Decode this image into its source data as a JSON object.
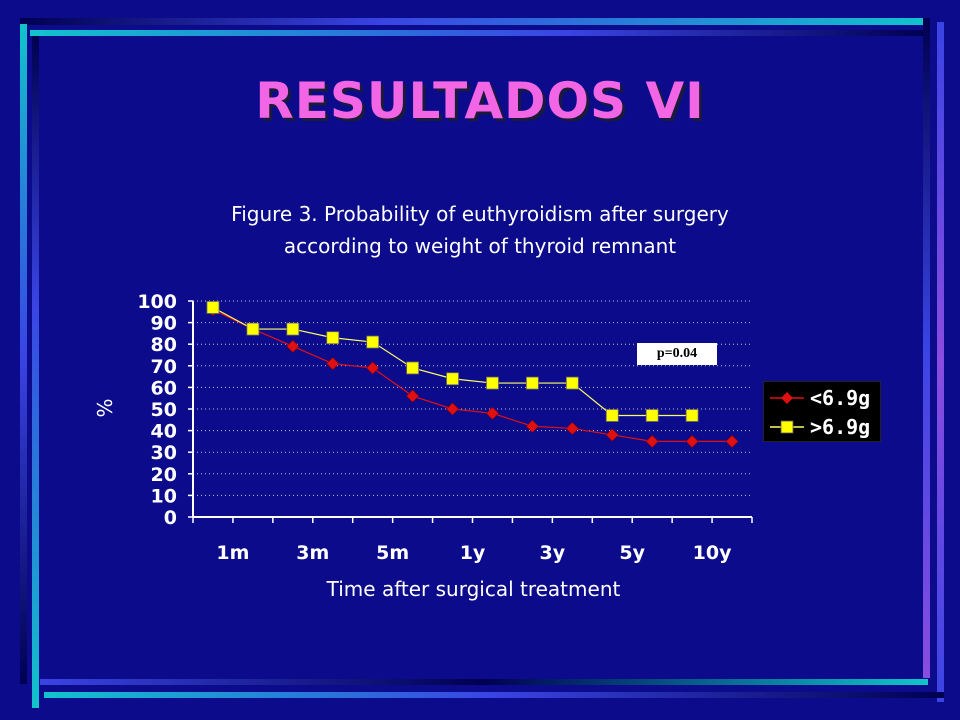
{
  "slide": {
    "title": "RESULTADOS  VI",
    "decor_colors": {
      "cyan": "#11c4cc",
      "blue": "#3a44e4",
      "violet": "#8a4de0",
      "navy": "#000050"
    }
  },
  "chart_data": {
    "type": "line",
    "title": [
      "Figure 3. Probability of euthyroidism after surgery",
      "according to weight of thyroid remnant"
    ],
    "xlabel": "Time after surgical treatment",
    "ylabel": "%",
    "x_tick_labels": [
      "1m",
      "3m",
      "5m",
      "1y",
      "3y",
      "5y",
      "10y"
    ],
    "ylim": [
      0,
      100
    ],
    "y_ticks": [
      0,
      10,
      20,
      30,
      40,
      50,
      60,
      70,
      80,
      90,
      100
    ],
    "grid": "horizontal dotted",
    "legend_position": "right",
    "series": [
      {
        "name": "<6.9g",
        "marker": "diamond",
        "color": "#e01010",
        "line_color": "#e01010",
        "values": [
          96,
          87,
          79,
          71,
          69,
          56,
          50,
          48,
          42,
          41,
          38,
          35,
          35,
          35
        ]
      },
      {
        "name": ">6.9g",
        "marker": "square",
        "color": "#ffff00",
        "line_color": "#ffff66",
        "values": [
          97,
          87,
          87,
          83,
          81,
          69,
          64,
          62,
          62,
          62,
          47,
          47,
          47
        ]
      }
    ],
    "annotations": [
      "p=0.04"
    ]
  }
}
